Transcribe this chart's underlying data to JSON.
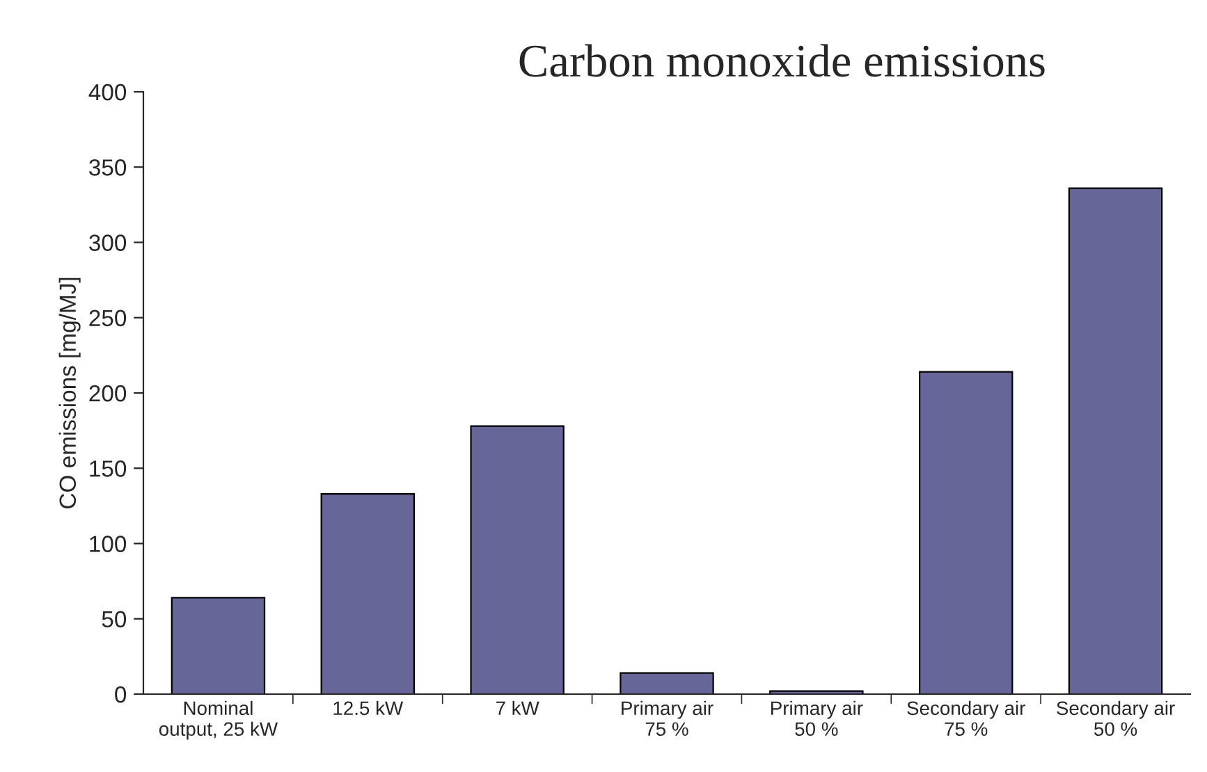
{
  "chart_data": {
    "type": "bar",
    "title": "Carbon monoxide emissions",
    "ylabel": "CO emissions [mg/MJ]",
    "categories": [
      "Nominal\noutput, 25 kW",
      "12.5 kW",
      "7 kW",
      "Primary air\n75 %",
      "Primary air\n50 %",
      "Secondary air\n75 %",
      "Secondary air\n50 %"
    ],
    "values": [
      64,
      133,
      178,
      14,
      2,
      214,
      336
    ],
    "color": "#666699",
    "ylim": [
      0,
      400
    ],
    "yticks": [
      0,
      50,
      100,
      150,
      200,
      250,
      300,
      350,
      400
    ],
    "grid": false,
    "legend": false
  }
}
